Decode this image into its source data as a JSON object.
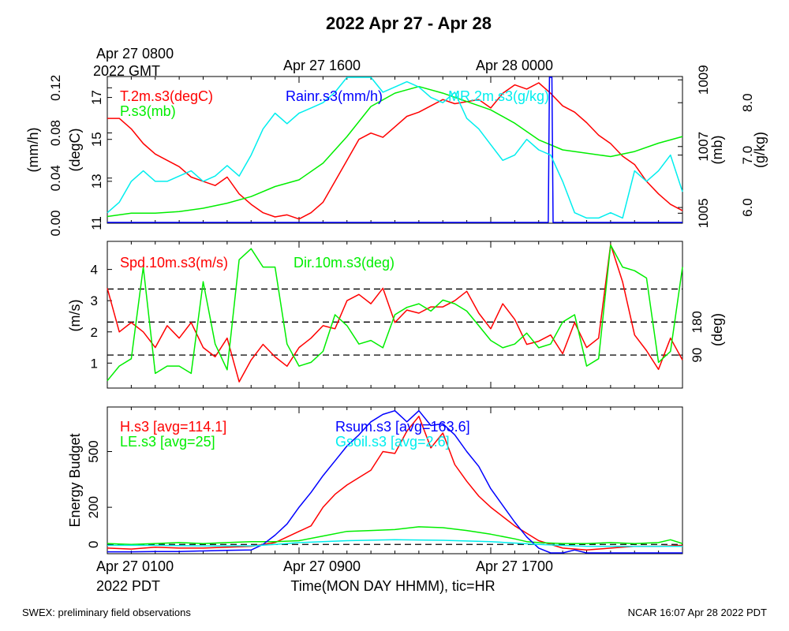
{
  "page": {
    "title": "2022 Apr 27 - Apr 28",
    "footer_left": "SWEX: preliminary field observations",
    "footer_right": "NCAR 16:07 Apr 28 2022 PDT"
  },
  "top_axis": {
    "labels": [
      "Apr 27 0800",
      "Apr 27 1600",
      "Apr 28 0000"
    ],
    "year_label": "2022 GMT",
    "positions_hours": [
      0,
      8,
      16
    ]
  },
  "bottom_axis": {
    "labels": [
      "Apr 27 0100",
      "Apr 27 0900",
      "Apr 27 1700"
    ],
    "year_label": "2022 PDT",
    "positions_hours": [
      0,
      8,
      16
    ],
    "title": "Time(MON DAY HHMM), tic=HR",
    "hours_span": 24
  },
  "colors": {
    "red": "#ff0000",
    "green": "#00ee00",
    "blue": "#0000ff",
    "cyan": "#00eeee",
    "black": "#000000"
  },
  "chart_data": [
    {
      "type": "line",
      "name": "panel-1",
      "series_labels": [
        "T.2m.s3(degC)",
        "P.s3(mb)",
        "Rainr.s3(mm/h)",
        "MR.2m.s3(g/kg)"
      ],
      "axes": [
        {
          "label": "(mm/h)",
          "side": "left-outer",
          "range": [
            0,
            0.13
          ],
          "ticks": [
            "0.00",
            "0.04",
            "0.08",
            "0.12"
          ],
          "tick_values": [
            0,
            0.04,
            0.08,
            0.12
          ]
        },
        {
          "label": "(degC)",
          "side": "left-inner",
          "range": [
            11,
            18
          ],
          "ticks": [
            "11",
            "13",
            "15",
            "17"
          ],
          "tick_values": [
            11,
            13,
            15,
            17
          ]
        },
        {
          "label": "(mb)",
          "side": "right-inner",
          "range": [
            1004.7,
            1009.1
          ],
          "ticks": [
            "1005",
            "1007",
            "1009"
          ],
          "tick_values": [
            1005,
            1007,
            1009
          ]
        },
        {
          "label": "(g/kg)",
          "side": "right-outer",
          "range": [
            5.7,
            8.5
          ],
          "ticks": [
            "6.0",
            "7.0",
            "8.0"
          ],
          "tick_values": [
            6,
            7,
            8
          ]
        }
      ],
      "series": [
        {
          "name": "T.2m.s3(degC)",
          "color": "#ff0000",
          "axis": 1,
          "x": [
            0,
            0.5,
            1,
            1.5,
            2,
            2.5,
            3,
            3.5,
            4,
            4.5,
            5,
            5.5,
            6,
            6.5,
            7,
            7.5,
            8,
            8.5,
            9,
            9.5,
            10,
            10.5,
            11,
            11.5,
            12,
            12.5,
            13,
            13.5,
            14,
            14.5,
            15,
            15.5,
            16,
            16.5,
            17,
            17.5,
            18,
            18.5,
            19,
            19.5,
            20,
            20.5,
            21,
            21.5,
            22,
            22.5,
            23,
            23.5,
            24
          ],
          "values": [
            16.0,
            16.0,
            15.5,
            14.8,
            14.3,
            14.0,
            13.7,
            13.2,
            13.0,
            12.8,
            13.2,
            12.4,
            11.9,
            11.5,
            11.3,
            11.4,
            11.2,
            11.5,
            12.0,
            13.0,
            14.0,
            15.0,
            15.3,
            15.1,
            15.6,
            16.1,
            16.3,
            16.6,
            16.9,
            16.7,
            16.8,
            16.9,
            16.5,
            17.2,
            17.6,
            17.4,
            17.7,
            17.2,
            16.6,
            16.3,
            15.8,
            15.2,
            14.8,
            14.2,
            13.8,
            13.0,
            12.4,
            11.9,
            11.6
          ]
        },
        {
          "name": "P.s3(mb)",
          "color": "#00ee00",
          "axis": 2,
          "x": [
            0,
            1,
            2,
            3,
            4,
            5,
            6,
            7,
            8,
            9,
            10,
            11,
            12,
            13,
            14,
            15,
            16,
            17,
            18,
            19,
            20,
            21,
            22,
            23,
            24
          ],
          "values": [
            1004.9,
            1005.0,
            1005.0,
            1005.05,
            1005.15,
            1005.3,
            1005.5,
            1005.8,
            1006.0,
            1006.5,
            1007.3,
            1008.2,
            1008.6,
            1008.8,
            1008.6,
            1008.35,
            1008.1,
            1007.7,
            1007.2,
            1006.9,
            1006.8,
            1006.7,
            1006.85,
            1007.1,
            1007.3
          ]
        },
        {
          "name": "Rainr.s3(mm/h)",
          "color": "#0000ff",
          "axis": 0,
          "x": [
            0,
            18.4,
            18.45,
            18.55,
            18.6,
            24
          ],
          "values": [
            0,
            0,
            0.13,
            0.13,
            0,
            0
          ]
        },
        {
          "name": "MR.2m.s3(g/kg)",
          "color": "#00eeee",
          "axis": 3,
          "x": [
            0,
            0.5,
            1,
            1.5,
            2,
            2.5,
            3,
            3.5,
            4,
            4.5,
            5,
            5.5,
            6,
            6.5,
            7,
            7.5,
            8,
            8.5,
            9,
            9.5,
            10,
            10.5,
            11,
            11.5,
            12,
            12.5,
            13,
            13.5,
            14,
            14.5,
            15,
            15.5,
            16,
            16.5,
            17,
            17.5,
            18,
            18.5,
            19,
            19.5,
            20,
            20.5,
            21,
            21.5,
            22,
            22.5,
            23,
            23.5,
            24
          ],
          "values": [
            5.9,
            6.1,
            6.5,
            6.7,
            6.5,
            6.5,
            6.6,
            6.7,
            6.5,
            6.6,
            6.8,
            6.6,
            7.0,
            7.5,
            7.8,
            7.6,
            7.8,
            7.9,
            8.0,
            8.2,
            8.5,
            8.5,
            8.5,
            8.2,
            8.3,
            8.4,
            8.3,
            8.1,
            8.0,
            8.2,
            7.7,
            7.5,
            7.2,
            6.9,
            7.0,
            7.3,
            7.1,
            7.0,
            6.5,
            5.9,
            5.8,
            5.8,
            5.9,
            5.8,
            6.7,
            6.5,
            6.7,
            7.0,
            6.3
          ]
        }
      ]
    },
    {
      "type": "line",
      "name": "panel-2",
      "series_labels": [
        "Spd.10m.s3(m/s)",
        "Dir.10m.s3(deg)"
      ],
      "axes": [
        {
          "label": "(m/s)",
          "side": "left",
          "range": [
            0.2,
            4.9
          ],
          "ticks": [
            "1",
            "2",
            "3",
            "4"
          ],
          "tick_values": [
            1,
            2,
            3,
            4
          ]
        },
        {
          "label": "(deg)",
          "side": "right",
          "range": [
            0,
            400
          ],
          "ticks": [
            "90",
            "180"
          ],
          "tick_values": [
            90,
            180
          ],
          "reference_lines": [
            90,
            180,
            270
          ]
        }
      ],
      "series": [
        {
          "name": "Spd.10m.s3(m/s)",
          "color": "#ff0000",
          "axis": 0,
          "x": [
            0,
            0.5,
            1,
            1.5,
            2,
            2.5,
            3,
            3.5,
            4,
            4.5,
            5,
            5.5,
            6,
            6.5,
            7,
            7.5,
            8,
            8.5,
            9,
            9.5,
            10,
            10.5,
            11,
            11.5,
            12,
            12.5,
            13,
            13.5,
            14,
            14.5,
            15,
            15.5,
            16,
            16.5,
            17,
            17.5,
            18,
            18.5,
            19,
            19.5,
            20,
            20.5,
            21,
            21.5,
            22,
            22.5,
            23,
            23.5,
            24
          ],
          "values": [
            3.4,
            2.0,
            2.3,
            2.0,
            1.5,
            2.2,
            1.8,
            2.3,
            1.5,
            1.2,
            1.8,
            0.4,
            1.1,
            1.6,
            1.2,
            0.9,
            1.5,
            1.8,
            2.2,
            2.1,
            3.0,
            3.2,
            2.9,
            3.4,
            2.3,
            2.7,
            2.6,
            2.8,
            2.8,
            3.0,
            3.3,
            2.6,
            2.1,
            2.9,
            2.4,
            1.6,
            1.7,
            1.9,
            1.3,
            2.3,
            1.5,
            1.8,
            4.8,
            3.6,
            1.9,
            1.4,
            0.8,
            1.8,
            1.1
          ]
        },
        {
          "name": "Dir.10m.s3(deg)",
          "color": "#00ee00",
          "axis": 1,
          "x": [
            0,
            0.5,
            1,
            1.5,
            2,
            2.5,
            3,
            3.5,
            4,
            4.5,
            5,
            5.5,
            6,
            6.5,
            7,
            7.5,
            8,
            8.5,
            9,
            9.5,
            10,
            10.5,
            11,
            11.5,
            12,
            12.5,
            13,
            13.5,
            14,
            14.5,
            15,
            15.5,
            16,
            16.5,
            17,
            17.5,
            18,
            18.5,
            19,
            19.5,
            20,
            20.5,
            21,
            21.5,
            22,
            22.5,
            23,
            23.5,
            24
          ],
          "values": [
            20,
            60,
            80,
            330,
            40,
            60,
            60,
            40,
            290,
            120,
            50,
            350,
            380,
            330,
            330,
            120,
            60,
            70,
            100,
            200,
            170,
            120,
            130,
            110,
            200,
            220,
            230,
            210,
            240,
            230,
            210,
            170,
            130,
            110,
            120,
            150,
            110,
            120,
            180,
            200,
            60,
            80,
            390,
            330,
            320,
            300,
            70,
            100,
            330
          ]
        }
      ]
    },
    {
      "type": "line",
      "name": "panel-3",
      "series_labels": [
        "H.s3 [avg=114.1]",
        "LE.s3 [avg=25]",
        "Rsum.s3 [avg=163.6]",
        "Gsoil.s3 [avg=2.6]"
      ],
      "axes": [
        {
          "label": "Energy Budget",
          "side": "left",
          "range": [
            -50,
            740
          ],
          "ticks": [
            "0",
            "200",
            "500"
          ],
          "tick_values": [
            0,
            200,
            500
          ],
          "reference_lines": [
            0
          ]
        }
      ],
      "series": [
        {
          "name": "H.s3 [avg=114.1]",
          "color": "#ff0000",
          "axis": 0,
          "x": [
            0,
            1,
            2,
            3,
            4,
            5,
            6,
            6.5,
            7,
            7.5,
            8,
            8.5,
            9,
            9.5,
            10,
            10.5,
            11,
            11.5,
            12,
            12.5,
            13,
            13.5,
            14,
            14.5,
            15,
            15.5,
            16,
            16.5,
            17,
            17.5,
            18,
            19,
            20,
            21,
            22,
            23,
            24
          ],
          "values": [
            -20,
            -25,
            -15,
            -20,
            -20,
            -15,
            -10,
            0,
            10,
            40,
            70,
            100,
            200,
            270,
            320,
            360,
            400,
            500,
            490,
            610,
            690,
            520,
            600,
            430,
            340,
            260,
            200,
            150,
            100,
            60,
            20,
            -20,
            -30,
            -20,
            -10,
            -10,
            -5
          ]
        },
        {
          "name": "LE.s3 [avg=25]",
          "color": "#00ee00",
          "axis": 0,
          "x": [
            0,
            1,
            2,
            3,
            4,
            5,
            6,
            7,
            8,
            9,
            10,
            11,
            12,
            13,
            14,
            15,
            16,
            17,
            17.5,
            18,
            19,
            20,
            21,
            22,
            23,
            23.5,
            24
          ],
          "values": [
            5,
            0,
            5,
            10,
            5,
            10,
            15,
            15,
            20,
            45,
            70,
            75,
            80,
            95,
            90,
            75,
            55,
            30,
            15,
            10,
            5,
            5,
            10,
            5,
            10,
            25,
            5
          ]
        },
        {
          "name": "Rsum.s3 [avg=163.6]",
          "color": "#0000ff",
          "axis": 0,
          "x": [
            0,
            1,
            2,
            3,
            4,
            5,
            6,
            6.5,
            7,
            7.5,
            8,
            8.5,
            9,
            9.5,
            10,
            10.5,
            11,
            11.5,
            12,
            12.5,
            13,
            13.5,
            14,
            14.5,
            15,
            15.5,
            16,
            16.5,
            17,
            17.5,
            18,
            18.5,
            19,
            19.5,
            20,
            21,
            22,
            23,
            24
          ],
          "values": [
            -40,
            -40,
            -38,
            -38,
            -35,
            -32,
            -30,
            0,
            50,
            110,
            200,
            280,
            370,
            450,
            530,
            590,
            660,
            700,
            720,
            660,
            720,
            640,
            650,
            590,
            500,
            420,
            300,
            210,
            120,
            40,
            -20,
            -50,
            -50,
            -30,
            -50,
            -50,
            -48,
            -50,
            -50
          ]
        },
        {
          "name": "Gsoil.s3 [avg=2.6]",
          "color": "#00eeee",
          "axis": 0,
          "x": [
            0,
            2,
            4,
            6,
            7,
            8,
            10,
            12,
            14,
            16,
            18,
            20,
            22,
            24
          ],
          "values": [
            -5,
            -5,
            -8,
            -8,
            0,
            10,
            20,
            25,
            22,
            15,
            0,
            -10,
            -10,
            -10
          ]
        }
      ]
    }
  ]
}
